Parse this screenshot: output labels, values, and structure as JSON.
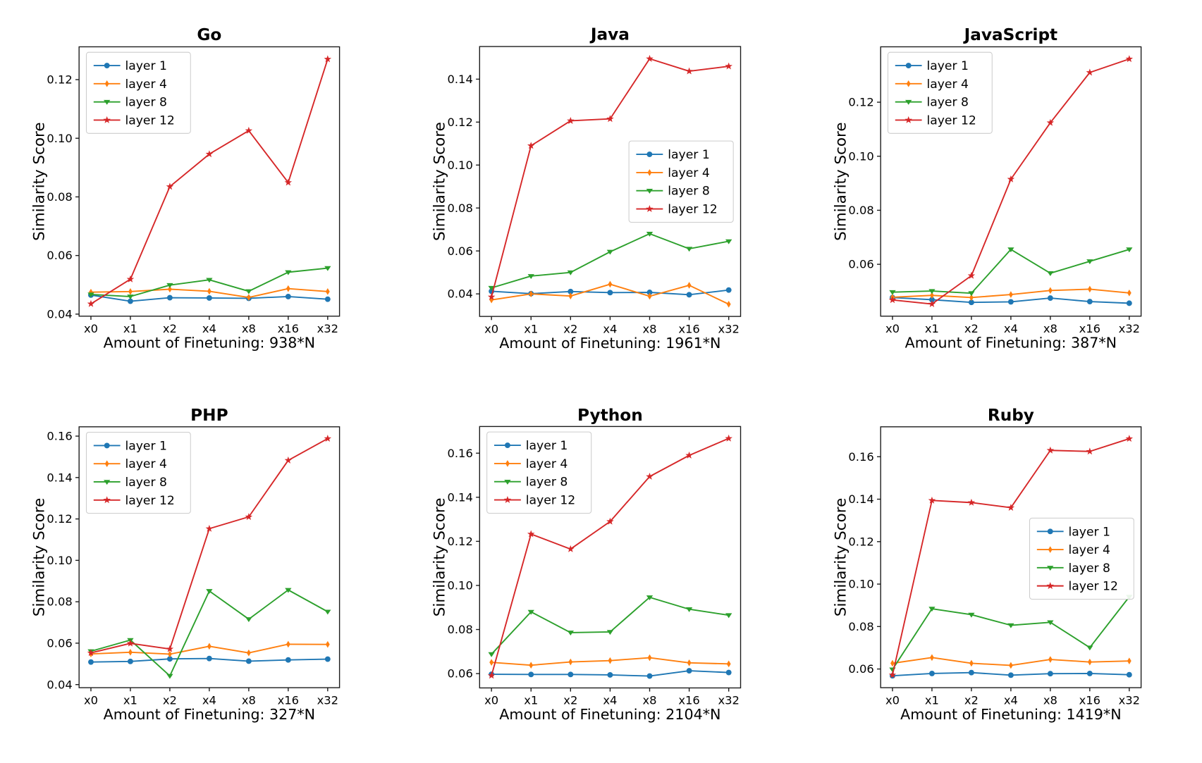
{
  "figure": {
    "ylabel": "Similarity Score",
    "x_categories": [
      "x0",
      "x1",
      "x2",
      "x4",
      "x8",
      "x16",
      "x32"
    ],
    "legend_labels": [
      "layer 1",
      "layer 4",
      "layer 8",
      "layer 12"
    ],
    "colors": {
      "layer 1": "#1f77b4",
      "layer 4": "#ff7f0e",
      "layer 8": "#2ca02c",
      "layer 12": "#d62728",
      "spine": "#1a1a1a",
      "legend_border": "#cccccc",
      "background": "#ffffff"
    }
  },
  "chart_data": [
    {
      "type": "line",
      "title": "Go",
      "xlabel": "Amount of Finetuning: 938*N",
      "ylabel": "Similarity Score",
      "categories": [
        "x0",
        "x1",
        "x2",
        "x4",
        "x8",
        "x16",
        "x32"
      ],
      "yticks": [
        "0.04",
        "0.06",
        "0.08",
        "0.10",
        "0.12"
      ],
      "ytick_values": [
        0.04,
        0.06,
        0.08,
        0.1,
        0.12
      ],
      "ylim": [
        0.0393,
        0.1312
      ],
      "legend_position": "upper-left",
      "grid": false,
      "series": [
        {
          "name": "layer 1",
          "color": "#1f77b4",
          "marker": "circle",
          "values": [
            0.0465,
            0.0444,
            0.0456,
            0.0455,
            0.0454,
            0.046,
            0.0451
          ]
        },
        {
          "name": "layer 4",
          "color": "#ff7f0e",
          "marker": "diamond",
          "values": [
            0.0475,
            0.0477,
            0.0485,
            0.0478,
            0.0457,
            0.0487,
            0.0477
          ]
        },
        {
          "name": "layer 8",
          "color": "#2ca02c",
          "marker": "triangle-down",
          "values": [
            0.0467,
            0.046,
            0.0499,
            0.0517,
            0.0478,
            0.0543,
            0.0557
          ]
        },
        {
          "name": "layer 12",
          "color": "#d62728",
          "marker": "star",
          "values": [
            0.0435,
            0.0519,
            0.0835,
            0.0946,
            0.1026,
            0.0849,
            0.127
          ]
        }
      ]
    },
    {
      "type": "line",
      "title": "Java",
      "xlabel": "Amount of Finetuning: 1961*N",
      "ylabel": "Similarity Score",
      "categories": [
        "x0",
        "x1",
        "x2",
        "x4",
        "x8",
        "x16",
        "x32"
      ],
      "yticks": [
        "0.04",
        "0.06",
        "0.08",
        "0.10",
        "0.12",
        "0.14"
      ],
      "ytick_values": [
        0.04,
        0.06,
        0.08,
        0.1,
        0.12,
        0.14
      ],
      "ylim": [
        0.0295,
        0.1552
      ],
      "legend_position": "center-right",
      "grid": false,
      "series": [
        {
          "name": "layer 1",
          "color": "#1f77b4",
          "marker": "circle",
          "values": [
            0.0412,
            0.0401,
            0.0411,
            0.0406,
            0.0407,
            0.0396,
            0.0418
          ]
        },
        {
          "name": "layer 4",
          "color": "#ff7f0e",
          "marker": "diamond",
          "values": [
            0.0372,
            0.04,
            0.039,
            0.0445,
            0.0389,
            0.044,
            0.0352
          ]
        },
        {
          "name": "layer 8",
          "color": "#2ca02c",
          "marker": "triangle-down",
          "values": [
            0.0428,
            0.0483,
            0.05,
            0.0596,
            0.068,
            0.061,
            0.0645
          ]
        },
        {
          "name": "layer 12",
          "color": "#d62728",
          "marker": "star",
          "values": [
            0.0386,
            0.109,
            0.1206,
            0.1215,
            0.1495,
            0.1437,
            0.146
          ]
        }
      ]
    },
    {
      "type": "line",
      "title": "JavaScript",
      "xlabel": "Amount of Finetuning: 387*N",
      "ylabel": "Similarity Score",
      "categories": [
        "x0",
        "x1",
        "x2",
        "x4",
        "x8",
        "x16",
        "x32"
      ],
      "yticks": [
        "0.06",
        "0.08",
        "0.10",
        "0.12"
      ],
      "ytick_values": [
        0.06,
        0.08,
        0.1,
        0.12
      ],
      "ylim": [
        0.0408,
        0.1405
      ],
      "legend_position": "upper-left",
      "grid": false,
      "series": [
        {
          "name": "layer 1",
          "color": "#1f77b4",
          "marker": "circle",
          "values": [
            0.0477,
            0.0469,
            0.0459,
            0.0461,
            0.0475,
            0.0462,
            0.0456
          ]
        },
        {
          "name": "layer 4",
          "color": "#ff7f0e",
          "marker": "diamond",
          "values": [
            0.0478,
            0.0485,
            0.0477,
            0.0488,
            0.0503,
            0.0508,
            0.0494
          ]
        },
        {
          "name": "layer 8",
          "color": "#2ca02c",
          "marker": "triangle-down",
          "values": [
            0.0497,
            0.0501,
            0.0493,
            0.0655,
            0.0567,
            0.0611,
            0.0655
          ]
        },
        {
          "name": "layer 12",
          "color": "#d62728",
          "marker": "star",
          "values": [
            0.0468,
            0.0453,
            0.0558,
            0.0915,
            0.1124,
            0.131,
            0.136
          ]
        }
      ]
    },
    {
      "type": "line",
      "title": "PHP",
      "xlabel": "Amount of Finetuning: 327*N",
      "ylabel": "Similarity Score",
      "categories": [
        "x0",
        "x1",
        "x2",
        "x4",
        "x8",
        "x16",
        "x32"
      ],
      "yticks": [
        "0.04",
        "0.06",
        "0.08",
        "0.10",
        "0.12",
        "0.14",
        "0.16"
      ],
      "ytick_values": [
        0.04,
        0.06,
        0.08,
        0.1,
        0.12,
        0.14,
        0.16
      ],
      "ylim": [
        0.0385,
        0.1645
      ],
      "legend_position": "upper-left",
      "grid": false,
      "series": [
        {
          "name": "layer 1",
          "color": "#1f77b4",
          "marker": "circle",
          "values": [
            0.0509,
            0.0512,
            0.0524,
            0.0526,
            0.0513,
            0.0519,
            0.0523
          ]
        },
        {
          "name": "layer 4",
          "color": "#ff7f0e",
          "marker": "diamond",
          "values": [
            0.0548,
            0.0556,
            0.0547,
            0.0585,
            0.0553,
            0.0595,
            0.0594
          ]
        },
        {
          "name": "layer 8",
          "color": "#2ca02c",
          "marker": "triangle-down",
          "values": [
            0.0561,
            0.0615,
            0.0442,
            0.0852,
            0.0716,
            0.0857,
            0.0752
          ]
        },
        {
          "name": "layer 12",
          "color": "#d62728",
          "marker": "star",
          "values": [
            0.0553,
            0.0599,
            0.0572,
            0.1153,
            0.121,
            0.1483,
            0.1588
          ]
        }
      ]
    },
    {
      "type": "line",
      "title": "Python",
      "xlabel": "Amount of Finetuning: 2104*N",
      "ylabel": "Similarity Score",
      "categories": [
        "x0",
        "x1",
        "x2",
        "x4",
        "x8",
        "x16",
        "x32"
      ],
      "yticks": [
        "0.06",
        "0.08",
        "0.10",
        "0.12",
        "0.14",
        "0.16"
      ],
      "ytick_values": [
        0.06,
        0.08,
        0.1,
        0.12,
        0.14,
        0.16
      ],
      "ylim": [
        0.0535,
        0.1721
      ],
      "legend_position": "upper-left",
      "grid": false,
      "series": [
        {
          "name": "layer 1",
          "color": "#1f77b4",
          "marker": "circle",
          "values": [
            0.0597,
            0.0596,
            0.0596,
            0.0594,
            0.0589,
            0.0613,
            0.0605
          ]
        },
        {
          "name": "layer 4",
          "color": "#ff7f0e",
          "marker": "diamond",
          "values": [
            0.0651,
            0.0638,
            0.0653,
            0.0659,
            0.0672,
            0.0649,
            0.0644
          ]
        },
        {
          "name": "layer 8",
          "color": "#2ca02c",
          "marker": "triangle-down",
          "values": [
            0.0688,
            0.088,
            0.0786,
            0.0789,
            0.0946,
            0.0892,
            0.0865
          ]
        },
        {
          "name": "layer 12",
          "color": "#d62728",
          "marker": "star",
          "values": [
            0.0591,
            0.1233,
            0.1165,
            0.129,
            0.1494,
            0.159,
            0.1667
          ]
        }
      ]
    },
    {
      "type": "line",
      "title": "Ruby",
      "xlabel": "Amount of Finetuning: 1419*N",
      "ylabel": "Similarity Score",
      "categories": [
        "x0",
        "x1",
        "x2",
        "x4",
        "x8",
        "x16",
        "x32"
      ],
      "yticks": [
        "0.06",
        "0.08",
        "0.10",
        "0.12",
        "0.14",
        "0.16"
      ],
      "ytick_values": [
        0.06,
        0.08,
        0.1,
        0.12,
        0.14,
        0.16
      ],
      "ylim": [
        0.0512,
        0.1741
      ],
      "legend_position": "center-right",
      "grid": false,
      "series": [
        {
          "name": "layer 1",
          "color": "#1f77b4",
          "marker": "circle",
          "values": [
            0.0568,
            0.0579,
            0.0583,
            0.0571,
            0.0578,
            0.0579,
            0.0573
          ]
        },
        {
          "name": "layer 4",
          "color": "#ff7f0e",
          "marker": "diamond",
          "values": [
            0.0627,
            0.0654,
            0.0627,
            0.0617,
            0.0645,
            0.0633,
            0.0638
          ]
        },
        {
          "name": "layer 8",
          "color": "#2ca02c",
          "marker": "triangle-down",
          "values": [
            0.0598,
            0.0884,
            0.0856,
            0.0806,
            0.082,
            0.0701,
            0.094
          ]
        },
        {
          "name": "layer 12",
          "color": "#d62728",
          "marker": "star",
          "values": [
            0.0572,
            0.1394,
            0.1384,
            0.136,
            0.163,
            0.1625,
            0.1685
          ]
        }
      ]
    }
  ]
}
